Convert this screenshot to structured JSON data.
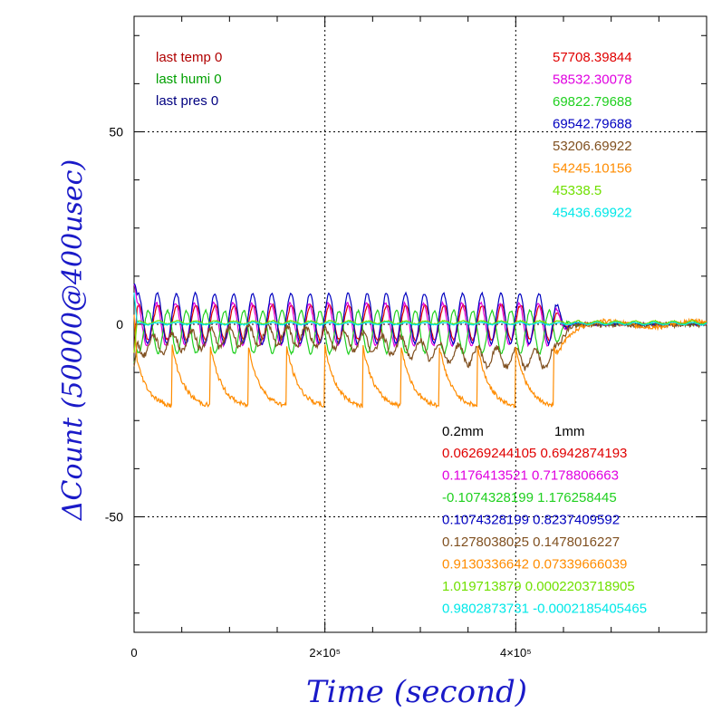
{
  "chart_data": {
    "type": "line",
    "xlabel": "Time (second)",
    "ylabel": "ΔCount (50000@400usec)",
    "xlim": [
      0,
      600000
    ],
    "ylim": [
      -80,
      80
    ],
    "x_ticks": [
      {
        "value": 0,
        "label": "0"
      },
      {
        "value": 200000,
        "label": "2×10⁵"
      },
      {
        "value": 400000,
        "label": "4×10⁵"
      }
    ],
    "y_ticks": [
      {
        "value": 50,
        "label": "50"
      },
      {
        "value": 0,
        "label": "0"
      },
      {
        "value": -50,
        "label": "-50"
      }
    ],
    "grid": "dotted at major ticks",
    "legend_left": [
      {
        "text": "last temp 0",
        "color": "#b00000"
      },
      {
        "text": "last humi 0",
        "color": "#00a000"
      },
      {
        "text": "last pres 0",
        "color": "#000080"
      }
    ],
    "legend_right": [
      {
        "text": "57708.39844",
        "color": "#e00000"
      },
      {
        "text": "58532.30078",
        "color": "#e000e0"
      },
      {
        "text": "69822.79688",
        "color": "#20d020"
      },
      {
        "text": "69542.79688",
        "color": "#0000c0"
      },
      {
        "text": "53206.69922",
        "color": "#805020"
      },
      {
        "text": "54245.10156",
        "color": "#ff8c00"
      },
      {
        "text": "45338.5",
        "color": "#70e000"
      },
      {
        "text": "45436.69922",
        "color": "#00e8e8"
      }
    ],
    "table_header": [
      "0.2mm",
      "1mm"
    ],
    "table_rows": [
      {
        "v1": "0.06269244105",
        "v2": "0.6942874193",
        "color": "#e00000"
      },
      {
        "v1": "0.1176413521",
        "v2": "0.7178806663",
        "color": "#e000e0"
      },
      {
        "v1": "-0.1074328199",
        "v2": "1.176258445",
        "color": "#20d020"
      },
      {
        "v1": "0.1074328199",
        "v2": "0.8237409592",
        "color": "#0000c0"
      },
      {
        "v1": "0.1278038025",
        "v2": "0.1478016227",
        "color": "#805020"
      },
      {
        "v1": "0.9130336642",
        "v2": "0.07339666039",
        "color": "#ff8c00"
      },
      {
        "v1": "1.019713879",
        "v2": "0.0002203718905",
        "color": "#70e000"
      },
      {
        "v1": "0.9802873731",
        "v2": "-0.0002185405465",
        "color": "#00e8e8"
      }
    ],
    "series": [
      {
        "color": "#e00000",
        "period": 20000,
        "amp": 4.5,
        "offset": 0.5,
        "phase": 0,
        "shape": "sine"
      },
      {
        "color": "#e000e0",
        "period": 20000,
        "amp": 5.5,
        "offset": 0,
        "phase": 0.5,
        "shape": "sine"
      },
      {
        "color": "#20d020",
        "period": 20000,
        "amp": 5.5,
        "offset": -2,
        "phase": 3.14,
        "shape": "sine"
      },
      {
        "color": "#0000c0",
        "period": 20000,
        "amp": 6.5,
        "offset": 1.5,
        "phase": 0.2,
        "shape": "sine"
      },
      {
        "color": "#805020",
        "period": 20000,
        "amp": 2.5,
        "offset": -6,
        "phase": 1.5,
        "shape": "drift"
      },
      {
        "color": "#ff8c00",
        "period": 40000,
        "amp": 8,
        "offset": -13,
        "phase": 0,
        "shape": "saw"
      },
      {
        "color": "#70e000",
        "period": 20000,
        "amp": 0.4,
        "offset": 0.5,
        "phase": 0,
        "shape": "flat"
      },
      {
        "color": "#00e8e8",
        "period": 20000,
        "amp": 0.3,
        "offset": 0.2,
        "phase": 0,
        "shape": "flat"
      }
    ],
    "oscillation_end": 440000
  }
}
